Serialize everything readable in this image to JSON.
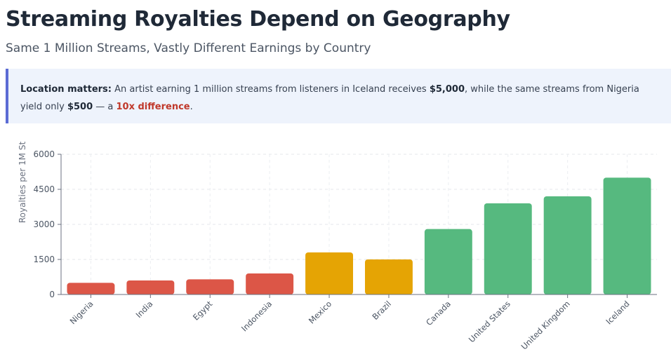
{
  "header": {
    "title": "Streaming Royalties Depend on Geography",
    "subtitle": "Same 1 Million Streams, Vastly Different Earnings by Country"
  },
  "callout": {
    "lead": "Location matters:",
    "text1": " An artist earning 1 million streams from listeners in Iceland receives ",
    "amount_high": "$5,000",
    "text2": ", while the same streams from Nigeria yield only ",
    "amount_low": "$500",
    "text3": " — a ",
    "ratio": "10x difference",
    "text4": "."
  },
  "chart_data": {
    "type": "bar",
    "categories": [
      "Nigeria",
      "India",
      "Egypt",
      "Indonesia",
      "Mexico",
      "Brazil",
      "Canada",
      "United States",
      "United Kingdom",
      "Iceland"
    ],
    "values": [
      500,
      600,
      650,
      900,
      1800,
      1500,
      2800,
      3900,
      4200,
      5000
    ],
    "colors": [
      "#dc5647",
      "#dc5647",
      "#dc5647",
      "#dc5647",
      "#e5a404",
      "#e5a404",
      "#56b97f",
      "#56b97f",
      "#56b97f",
      "#56b97f"
    ],
    "ylabel": "Royalties per 1M St",
    "xlabel": "",
    "ylim": [
      0,
      6000
    ],
    "yticks": [
      0,
      1500,
      3000,
      4500,
      6000
    ],
    "grid": true
  }
}
